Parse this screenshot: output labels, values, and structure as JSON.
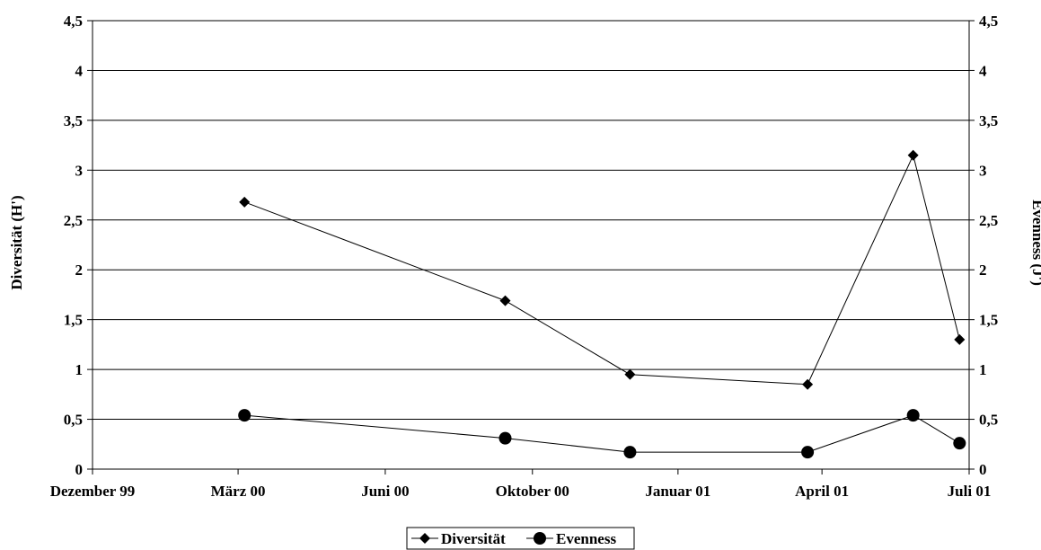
{
  "chart_data": {
    "type": "line",
    "title": "",
    "x_axis": {
      "type": "date",
      "ticks": [
        "1999-12-01",
        "2000-03-01",
        "2000-06-01",
        "2000-09-01",
        "2000-12-01",
        "2001-03-01",
        "2001-06-01"
      ],
      "tick_labels": [
        "Dezember 99",
        "März 00",
        "Juni 00",
        "Oktober 00",
        "Januar 01",
        "April 01",
        "Juli 01"
      ],
      "range": [
        "1999-12-01",
        "2001-06-01"
      ]
    },
    "y_axis_left": {
      "label": "Diversität (H')",
      "range": [
        0,
        4.5
      ],
      "ticks": [
        0,
        0.5,
        1,
        1.5,
        2,
        2.5,
        3,
        3.5,
        4,
        4.5
      ],
      "tick_labels": [
        "0",
        "0,5",
        "1",
        "1,5",
        "2",
        "2,5",
        "3",
        "3,5",
        "4",
        "4,5"
      ]
    },
    "y_axis_right": {
      "label": "Evenness (J')",
      "range": [
        0,
        4.5
      ],
      "ticks": [
        0,
        0.5,
        1,
        1.5,
        2,
        2.5,
        3,
        3.5,
        4,
        4.5
      ],
      "tick_labels": [
        "0",
        "0,5",
        "1",
        "1,5",
        "2",
        "2,5",
        "3",
        "3,5",
        "4",
        "4,5"
      ]
    },
    "grid": "horizontal",
    "legend_position": "bottom",
    "series": [
      {
        "name": "Diversität",
        "marker": "diamond",
        "color": "#000000",
        "points": [
          {
            "x": "2000-03-05",
            "y": 2.68
          },
          {
            "x": "2000-08-15",
            "y": 1.69
          },
          {
            "x": "2000-11-01",
            "y": 0.95
          },
          {
            "x": "2001-02-20",
            "y": 0.85
          },
          {
            "x": "2001-04-27",
            "y": 3.15
          },
          {
            "x": "2001-05-26",
            "y": 1.3
          }
        ]
      },
      {
        "name": "Evenness",
        "marker": "circle",
        "color": "#000000",
        "points": [
          {
            "x": "2000-03-05",
            "y": 0.54
          },
          {
            "x": "2000-08-15",
            "y": 0.31
          },
          {
            "x": "2000-11-01",
            "y": 0.17
          },
          {
            "x": "2001-02-20",
            "y": 0.17
          },
          {
            "x": "2001-04-27",
            "y": 0.54
          },
          {
            "x": "2001-05-26",
            "y": 0.26
          }
        ]
      }
    ]
  }
}
